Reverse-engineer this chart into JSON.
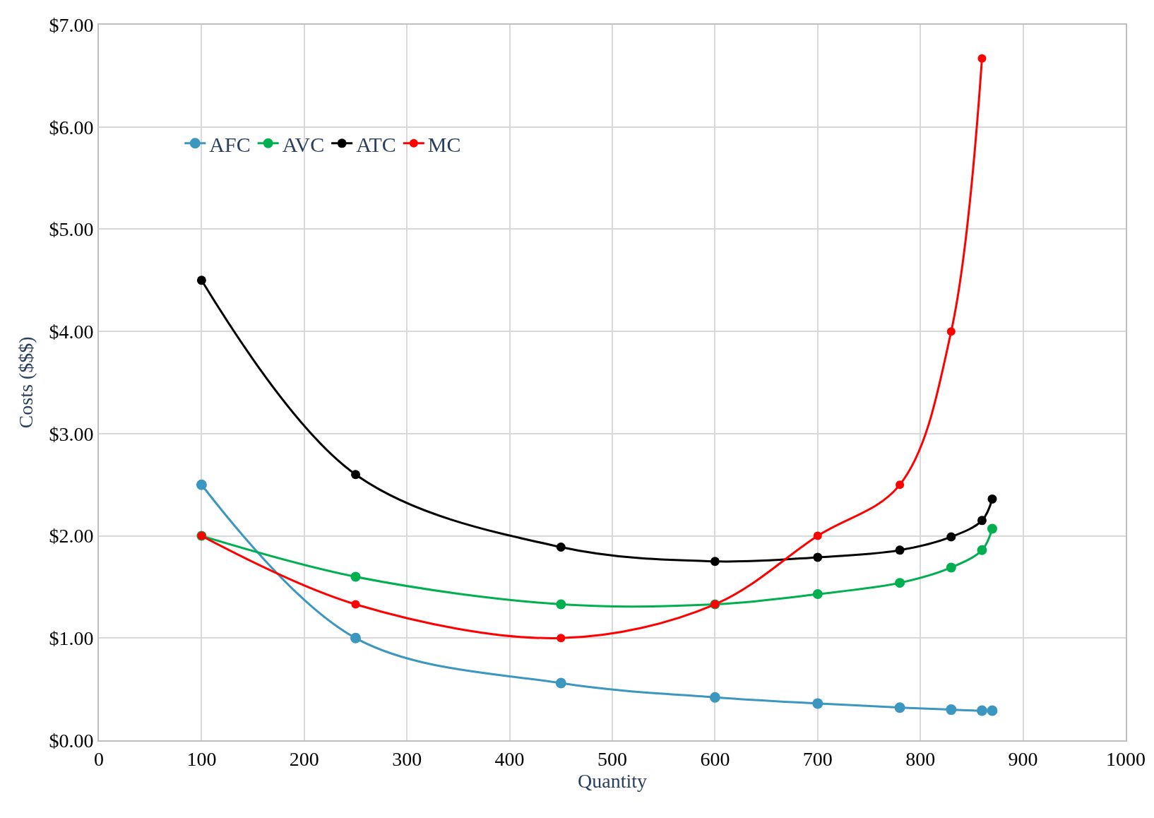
{
  "chart_data": {
    "type": "line",
    "xlabel": "Quantity",
    "ylabel": "Costs ($$$)",
    "x": [
      100,
      250,
      450,
      600,
      700,
      780,
      830,
      860,
      870
    ],
    "series": [
      {
        "name": "AFC",
        "color": "#3c97c0",
        "values": [
          2.5,
          1.0,
          0.56,
          0.42,
          0.36,
          0.32,
          0.3,
          0.29,
          0.29
        ]
      },
      {
        "name": "AVC",
        "color": "#00b050",
        "values": [
          2.0,
          1.6,
          1.33,
          1.33,
          1.43,
          1.54,
          1.69,
          1.86,
          2.07
        ]
      },
      {
        "name": "ATC",
        "color": "#000000",
        "values": [
          4.5,
          2.6,
          1.89,
          1.75,
          1.79,
          1.86,
          1.99,
          2.15,
          2.36
        ]
      },
      {
        "name": "MC",
        "color": "#ff0000",
        "x": [
          100,
          250,
          450,
          600,
          700,
          780,
          830,
          860
        ],
        "values": [
          2.0,
          1.33,
          1.0,
          1.33,
          2.0,
          2.5,
          4.0,
          6.67
        ]
      }
    ],
    "xlim": [
      0,
      1000
    ],
    "xticks": [
      0,
      100,
      200,
      300,
      400,
      500,
      600,
      700,
      800,
      900,
      1000
    ],
    "ylim": [
      0,
      7
    ],
    "yticks": [
      {
        "value": 0,
        "label": "$0.00"
      },
      {
        "value": 1,
        "label": "$1.00"
      },
      {
        "value": 2,
        "label": "$2.00"
      },
      {
        "value": 3,
        "label": "$3.00"
      },
      {
        "value": 4,
        "label": "$4.00"
      },
      {
        "value": 5,
        "label": "$5.00"
      },
      {
        "value": 6,
        "label": "$6.00"
      },
      {
        "value": 7,
        "label": "$7.00"
      }
    ],
    "grid": true,
    "legend": "top left",
    "marker": "circle",
    "line_style": "solid"
  }
}
